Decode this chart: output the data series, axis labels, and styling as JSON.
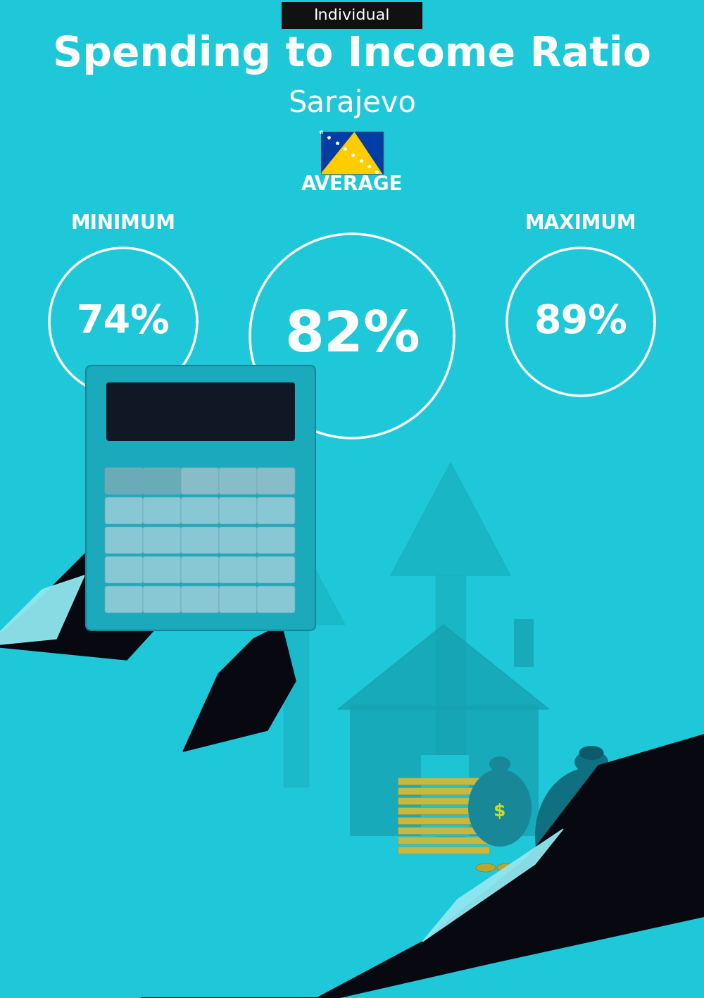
{
  "title": "Spending to Income Ratio",
  "subtitle": "Sarajevo",
  "tag_label": "Individual",
  "bg_color": "#1EC8D8",
  "tag_bg_color": "#111111",
  "tag_text_color": "#ffffff",
  "title_color": "#ffffff",
  "subtitle_color": "#ffffff",
  "circle_color": "#ffffff",
  "text_color": "#ffffff",
  "min_label": "MINIMUM",
  "avg_label": "AVERAGE",
  "max_label": "MAXIMUM",
  "min_value": "74%",
  "avg_value": "82%",
  "max_value": "89%",
  "label_fontsize": 20,
  "value_fontsize_small": 40,
  "value_fontsize_large": 58,
  "title_fontsize": 42,
  "subtitle_fontsize": 30,
  "illus_arrow_color": "#18B0C0",
  "illus_house_color": "#15A0B0",
  "hand_color": "#080810",
  "cuff_color": "#90E8F0",
  "calc_body_color": "#1AAABB",
  "calc_screen_color": "#111825",
  "calc_btn_color": "#8ECCD8",
  "calc_btn_top_color": "#6AAABB",
  "bag1_color": "#188898",
  "bag2_color": "#107080",
  "dollar_color": "#C8D830",
  "stack_color": "#C8B840"
}
